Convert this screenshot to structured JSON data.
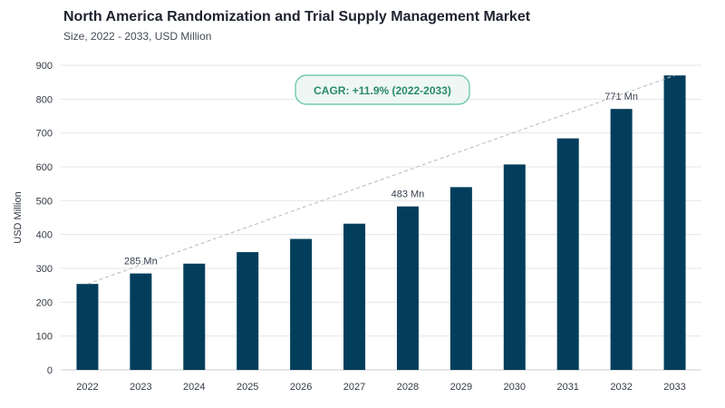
{
  "header": {
    "title": "North America Randomization and Trial Supply Management Market",
    "subtitle": "Size, 2022 - 2033, USD Million"
  },
  "chart_data": {
    "type": "bar",
    "categories": [
      "2022",
      "2023",
      "2024",
      "2025",
      "2026",
      "2027",
      "2028",
      "2029",
      "2030",
      "2031",
      "2032",
      "2033"
    ],
    "values": [
      254,
      285,
      314,
      348,
      387,
      432,
      483,
      540,
      607,
      684,
      771,
      870
    ],
    "ylabel": "USD Million",
    "xlabel": "",
    "ylim": [
      0,
      900
    ],
    "yticks": [
      0,
      100,
      200,
      300,
      400,
      500,
      600,
      700,
      800,
      900
    ],
    "grid": true,
    "bar_color": "#023e5b",
    "data_labels": [
      {
        "category": "2023",
        "text": "285 Mn"
      },
      {
        "category": "2028",
        "text": "483 Mn"
      },
      {
        "category": "2032",
        "text": "771 Mn"
      }
    ],
    "trend_line": {
      "from": "2022",
      "to": "2033",
      "style": "dashed"
    },
    "annotation": {
      "text": "CAGR: +11.9% (2022-2033)",
      "color": "#2a8a6a"
    }
  }
}
